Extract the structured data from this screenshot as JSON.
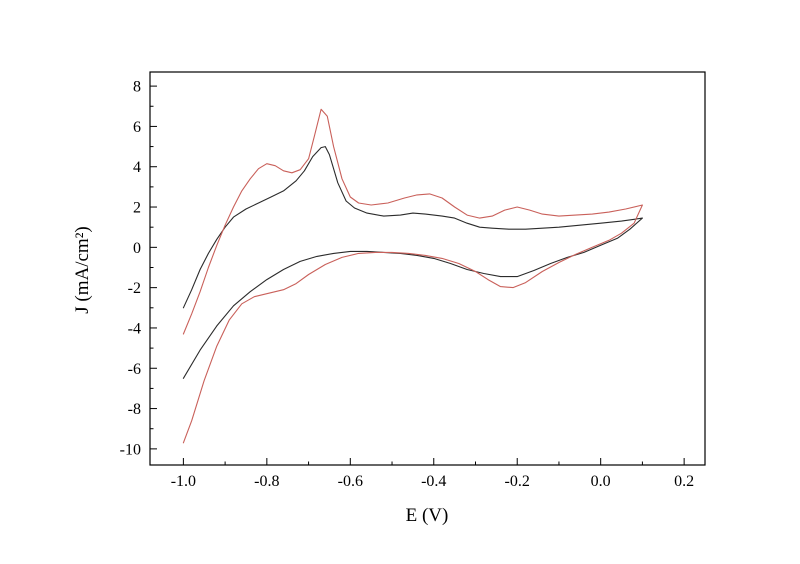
{
  "colors": {
    "background": "#ffffff",
    "axis": "#000000",
    "black_curve": "#2b2b2b",
    "red_curve": "#c9605a"
  },
  "chart_data": {
    "type": "line",
    "title": "",
    "xlabel": "E (V)",
    "ylabel": "J (mA/cm²)",
    "grid": false,
    "legend": null,
    "xlim": [
      -1.08,
      0.25
    ],
    "ylim": [
      -10.8,
      8.7
    ],
    "x_ticks": [
      -1.0,
      -0.8,
      -0.6,
      -0.4,
      -0.2,
      0.0,
      0.2
    ],
    "x_tick_labels": [
      "-1.0",
      "-0.8",
      "-0.6",
      "-0.4",
      "-0.2",
      "0.0",
      "0.2"
    ],
    "y_ticks": [
      8,
      6,
      4,
      2,
      0,
      -2,
      -4,
      -6,
      -8,
      -10
    ],
    "y_tick_labels": [
      "8",
      "6",
      "4",
      "2",
      "0",
      "-2",
      "-4",
      "-6",
      "-8",
      "-10"
    ],
    "x_minor_step": 0.1,
    "y_minor_step": 1,
    "series": [
      {
        "name": "black-scan",
        "color": "#2b2b2b",
        "points": [
          [
            -1.0,
            -3.0
          ],
          [
            -0.98,
            -2.1
          ],
          [
            -0.96,
            -1.1
          ],
          [
            -0.94,
            -0.3
          ],
          [
            -0.92,
            0.4
          ],
          [
            -0.9,
            1.0
          ],
          [
            -0.88,
            1.5
          ],
          [
            -0.85,
            1.9
          ],
          [
            -0.82,
            2.2
          ],
          [
            -0.79,
            2.5
          ],
          [
            -0.76,
            2.8
          ],
          [
            -0.73,
            3.3
          ],
          [
            -0.71,
            3.8
          ],
          [
            -0.69,
            4.5
          ],
          [
            -0.67,
            4.95
          ],
          [
            -0.66,
            5.0
          ],
          [
            -0.65,
            4.6
          ],
          [
            -0.63,
            3.2
          ],
          [
            -0.61,
            2.3
          ],
          [
            -0.59,
            1.95
          ],
          [
            -0.56,
            1.7
          ],
          [
            -0.52,
            1.55
          ],
          [
            -0.48,
            1.6
          ],
          [
            -0.45,
            1.7
          ],
          [
            -0.42,
            1.65
          ],
          [
            -0.38,
            1.55
          ],
          [
            -0.35,
            1.45
          ],
          [
            -0.32,
            1.2
          ],
          [
            -0.29,
            1.0
          ],
          [
            -0.26,
            0.95
          ],
          [
            -0.22,
            0.9
          ],
          [
            -0.18,
            0.9
          ],
          [
            -0.14,
            0.95
          ],
          [
            -0.1,
            1.0
          ],
          [
            -0.05,
            1.1
          ],
          [
            0.0,
            1.2
          ],
          [
            0.05,
            1.3
          ],
          [
            0.1,
            1.45
          ],
          [
            0.07,
            0.9
          ],
          [
            0.04,
            0.45
          ],
          [
            0.0,
            0.1
          ],
          [
            -0.04,
            -0.25
          ],
          [
            -0.08,
            -0.5
          ],
          [
            -0.12,
            -0.8
          ],
          [
            -0.16,
            -1.15
          ],
          [
            -0.2,
            -1.45
          ],
          [
            -0.24,
            -1.45
          ],
          [
            -0.28,
            -1.3
          ],
          [
            -0.32,
            -1.1
          ],
          [
            -0.36,
            -0.8
          ],
          [
            -0.4,
            -0.55
          ],
          [
            -0.44,
            -0.4
          ],
          [
            -0.48,
            -0.3
          ],
          [
            -0.52,
            -0.25
          ],
          [
            -0.56,
            -0.2
          ],
          [
            -0.6,
            -0.2
          ],
          [
            -0.64,
            -0.3
          ],
          [
            -0.68,
            -0.45
          ],
          [
            -0.72,
            -0.7
          ],
          [
            -0.76,
            -1.1
          ],
          [
            -0.8,
            -1.6
          ],
          [
            -0.84,
            -2.2
          ],
          [
            -0.88,
            -2.9
          ],
          [
            -0.92,
            -3.9
          ],
          [
            -0.96,
            -5.1
          ],
          [
            -1.0,
            -6.5
          ]
        ]
      },
      {
        "name": "red-scan",
        "color": "#c9605a",
        "points": [
          [
            -1.0,
            -4.3
          ],
          [
            -0.98,
            -3.3
          ],
          [
            -0.96,
            -2.2
          ],
          [
            -0.94,
            -1.0
          ],
          [
            -0.92,
            0.1
          ],
          [
            -0.9,
            1.1
          ],
          [
            -0.88,
            2.0
          ],
          [
            -0.86,
            2.8
          ],
          [
            -0.84,
            3.4
          ],
          [
            -0.82,
            3.9
          ],
          [
            -0.8,
            4.15
          ],
          [
            -0.78,
            4.05
          ],
          [
            -0.76,
            3.8
          ],
          [
            -0.74,
            3.7
          ],
          [
            -0.72,
            3.85
          ],
          [
            -0.7,
            4.4
          ],
          [
            -0.685,
            5.6
          ],
          [
            -0.67,
            6.85
          ],
          [
            -0.655,
            6.5
          ],
          [
            -0.64,
            5.0
          ],
          [
            -0.62,
            3.4
          ],
          [
            -0.6,
            2.5
          ],
          [
            -0.58,
            2.2
          ],
          [
            -0.55,
            2.1
          ],
          [
            -0.51,
            2.2
          ],
          [
            -0.47,
            2.45
          ],
          [
            -0.44,
            2.6
          ],
          [
            -0.41,
            2.65
          ],
          [
            -0.38,
            2.45
          ],
          [
            -0.35,
            2.0
          ],
          [
            -0.32,
            1.6
          ],
          [
            -0.29,
            1.45
          ],
          [
            -0.26,
            1.55
          ],
          [
            -0.23,
            1.85
          ],
          [
            -0.2,
            2.0
          ],
          [
            -0.17,
            1.85
          ],
          [
            -0.14,
            1.65
          ],
          [
            -0.1,
            1.55
          ],
          [
            -0.06,
            1.6
          ],
          [
            -0.02,
            1.65
          ],
          [
            0.02,
            1.75
          ],
          [
            0.06,
            1.9
          ],
          [
            0.1,
            2.1
          ],
          [
            0.08,
            1.2
          ],
          [
            0.05,
            0.7
          ],
          [
            0.02,
            0.35
          ],
          [
            -0.02,
            0.0
          ],
          [
            -0.06,
            -0.35
          ],
          [
            -0.1,
            -0.75
          ],
          [
            -0.14,
            -1.2
          ],
          [
            -0.18,
            -1.75
          ],
          [
            -0.21,
            -2.0
          ],
          [
            -0.24,
            -1.95
          ],
          [
            -0.27,
            -1.6
          ],
          [
            -0.3,
            -1.2
          ],
          [
            -0.34,
            -0.8
          ],
          [
            -0.38,
            -0.55
          ],
          [
            -0.42,
            -0.4
          ],
          [
            -0.46,
            -0.3
          ],
          [
            -0.5,
            -0.25
          ],
          [
            -0.54,
            -0.25
          ],
          [
            -0.58,
            -0.3
          ],
          [
            -0.62,
            -0.5
          ],
          [
            -0.66,
            -0.85
          ],
          [
            -0.7,
            -1.35
          ],
          [
            -0.73,
            -1.8
          ],
          [
            -0.76,
            -2.1
          ],
          [
            -0.8,
            -2.3
          ],
          [
            -0.83,
            -2.45
          ],
          [
            -0.86,
            -2.8
          ],
          [
            -0.89,
            -3.6
          ],
          [
            -0.92,
            -4.9
          ],
          [
            -0.95,
            -6.6
          ],
          [
            -0.98,
            -8.6
          ],
          [
            -1.0,
            -9.7
          ]
        ]
      }
    ]
  }
}
